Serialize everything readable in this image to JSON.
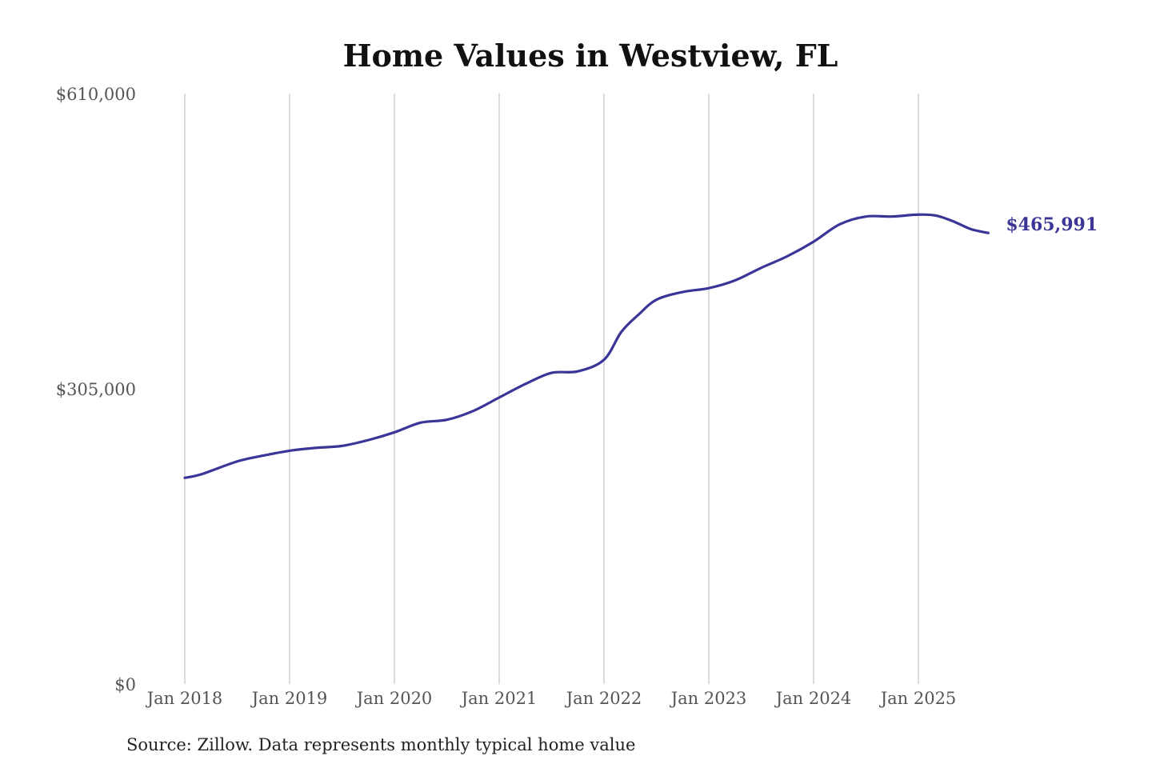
{
  "chart_data": {
    "type": "line",
    "title": "Home Values in Westview, FL",
    "source": "Source: Zillow. Data represents monthly typical home value",
    "xlabel": "",
    "ylabel": "",
    "ylim": [
      0,
      610000
    ],
    "y_ticks": [
      0,
      305000,
      610000
    ],
    "y_tick_labels": [
      "$0",
      "$305,000",
      "$610,000"
    ],
    "x_tick_dates": [
      "2018-01",
      "2019-01",
      "2020-01",
      "2021-01",
      "2022-01",
      "2023-01",
      "2024-01",
      "2025-01"
    ],
    "x_tick_labels": [
      "Jan 2018",
      "Jan 2019",
      "Jan 2020",
      "Jan 2021",
      "Jan 2022",
      "Jan 2023",
      "Jan 2024",
      "Jan 2025"
    ],
    "grid": "vertical",
    "line_color": "#3a3597",
    "end_label": "$465,991",
    "series": [
      {
        "x": [
          "2018-01",
          "2018-03",
          "2018-07",
          "2018-10",
          "2019-01",
          "2019-04",
          "2019-07",
          "2019-10",
          "2020-01",
          "2020-04",
          "2020-07",
          "2020-10",
          "2021-01",
          "2021-04",
          "2021-07",
          "2021-10",
          "2022-01",
          "2022-03",
          "2022-05",
          "2022-07",
          "2022-10",
          "2023-01",
          "2023-04",
          "2023-07",
          "2023-10",
          "2024-01",
          "2024-04",
          "2024-07",
          "2024-10",
          "2025-01",
          "2025-03",
          "2025-05",
          "2025-07",
          "2025-09"
        ],
        "values": [
          213000,
          217000,
          230000,
          236000,
          241000,
          244000,
          246000,
          252000,
          260000,
          270000,
          273000,
          282000,
          296000,
          310000,
          321500,
          323000,
          335000,
          364000,
          382000,
          397000,
          405000,
          409000,
          417000,
          430000,
          442000,
          457000,
          475000,
          483000,
          483000,
          485000,
          484000,
          478000,
          470000,
          465991
        ]
      }
    ]
  }
}
